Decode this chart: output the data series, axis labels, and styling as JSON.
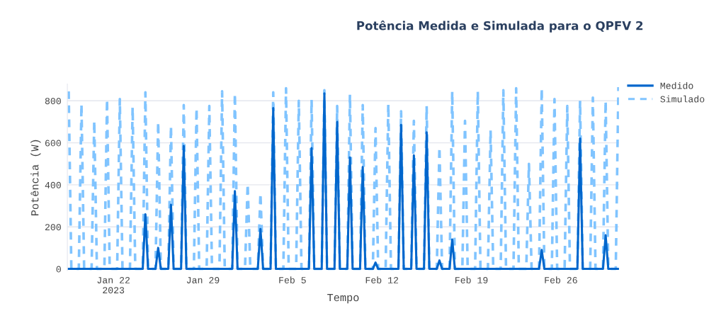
{
  "chart_data": {
    "type": "line",
    "title": "Potência Medida e Simulada para o QPFV 2",
    "xlabel": "Tempo",
    "ylabel": "Potência (W)",
    "xlim": [
      "2023-01-18T09:30",
      "2023-03-02T13:00"
    ],
    "ylim": [
      -8,
      880
    ],
    "xticks": [
      {
        "value": "2023-01-22",
        "label": "Jan 22\n2023"
      },
      {
        "value": "2023-01-29",
        "label": "Jan 29"
      },
      {
        "value": "2023-02-05",
        "label": "Feb 5"
      },
      {
        "value": "2023-02-12",
        "label": "Feb 12"
      },
      {
        "value": "2023-02-19",
        "label": "Feb 19"
      },
      {
        "value": "2023-02-26",
        "label": "Feb 26"
      }
    ],
    "yticks": [
      0,
      200,
      400,
      600,
      800
    ],
    "grid": "y",
    "legend": "right",
    "x": [
      "2023-01-18T12:00",
      "2023-01-18T17:00",
      "2023-01-19T07:00",
      "2023-01-19T12:00",
      "2023-01-19T17:00",
      "2023-01-20T07:00",
      "2023-01-20T12:00",
      "2023-01-20T17:00",
      "2023-01-21T07:00",
      "2023-01-21T12:00",
      "2023-01-21T17:00",
      "2023-01-22T07:00",
      "2023-01-22T12:00",
      "2023-01-22T17:00",
      "2023-01-23T07:00",
      "2023-01-23T12:00",
      "2023-01-23T17:00",
      "2023-01-24T07:00",
      "2023-01-24T12:00",
      "2023-01-24T17:00",
      "2023-01-25T07:00",
      "2023-01-25T12:00",
      "2023-01-25T17:00",
      "2023-01-26T07:00",
      "2023-01-26T12:00",
      "2023-01-26T17:00",
      "2023-01-27T07:00",
      "2023-01-27T12:00",
      "2023-01-27T17:00",
      "2023-01-28T07:00",
      "2023-01-28T12:00",
      "2023-01-28T17:00",
      "2023-01-29T07:00",
      "2023-01-29T12:00",
      "2023-01-29T17:00",
      "2023-01-30T07:00",
      "2023-01-30T12:00",
      "2023-01-30T17:00",
      "2023-01-31T07:00",
      "2023-01-31T12:00",
      "2023-01-31T17:00",
      "2023-02-01T07:00",
      "2023-02-01T12:00",
      "2023-02-01T17:00",
      "2023-02-02T07:00",
      "2023-02-02T12:00",
      "2023-02-02T17:00",
      "2023-02-03T07:00",
      "2023-02-03T12:00",
      "2023-02-03T17:00",
      "2023-02-04T07:00",
      "2023-02-04T12:00",
      "2023-02-04T17:00",
      "2023-02-05T07:00",
      "2023-02-05T12:00",
      "2023-02-05T17:00",
      "2023-02-06T07:00",
      "2023-02-06T12:00",
      "2023-02-06T17:00",
      "2023-02-07T07:00",
      "2023-02-07T12:00",
      "2023-02-07T17:00",
      "2023-02-08T07:00",
      "2023-02-08T12:00",
      "2023-02-08T17:00",
      "2023-02-09T07:00",
      "2023-02-09T12:00",
      "2023-02-09T17:00",
      "2023-02-10T07:00",
      "2023-02-10T12:00",
      "2023-02-10T17:00",
      "2023-02-11T07:00",
      "2023-02-11T12:00",
      "2023-02-11T17:00",
      "2023-02-12T07:00",
      "2023-02-12T12:00",
      "2023-02-12T17:00",
      "2023-02-13T07:00",
      "2023-02-13T12:00",
      "2023-02-13T17:00",
      "2023-02-14T07:00",
      "2023-02-14T12:00",
      "2023-02-14T17:00",
      "2023-02-15T07:00",
      "2023-02-15T12:00",
      "2023-02-15T17:00",
      "2023-02-16T07:00",
      "2023-02-16T12:00",
      "2023-02-16T17:00",
      "2023-02-17T07:00",
      "2023-02-17T12:00",
      "2023-02-17T17:00",
      "2023-02-18T07:00",
      "2023-02-18T12:00",
      "2023-02-18T17:00",
      "2023-02-19T07:00",
      "2023-02-19T12:00",
      "2023-02-19T17:00",
      "2023-02-20T07:00",
      "2023-02-20T12:00",
      "2023-02-20T17:00",
      "2023-02-21T07:00",
      "2023-02-21T12:00",
      "2023-02-21T17:00",
      "2023-02-22T07:00",
      "2023-02-22T12:00",
      "2023-02-22T17:00",
      "2023-02-23T07:00",
      "2023-02-23T12:00",
      "2023-02-23T17:00",
      "2023-02-24T07:00",
      "2023-02-24T12:00",
      "2023-02-24T17:00",
      "2023-02-25T07:00",
      "2023-02-25T12:00",
      "2023-02-25T17:00",
      "2023-02-26T07:00",
      "2023-02-26T12:00",
      "2023-02-26T17:00",
      "2023-02-27T07:00",
      "2023-02-27T12:00",
      "2023-02-27T17:00",
      "2023-02-28T07:00",
      "2023-02-28T12:00",
      "2023-02-28T17:00",
      "2023-03-01T07:00",
      "2023-03-01T12:00",
      "2023-03-01T17:00",
      "2023-03-02T07:00",
      "2023-03-02T12:00"
    ],
    "series": [
      {
        "name": "Medido",
        "color": "#0066cc",
        "line_style": "solid",
        "values": [
          0,
          0,
          0,
          0,
          0,
          0,
          0,
          0,
          0,
          0,
          0,
          0,
          0,
          0,
          0,
          0,
          0,
          0,
          260,
          0,
          0,
          100,
          0,
          0,
          305,
          0,
          0,
          585,
          0,
          0,
          0,
          0,
          0,
          0,
          0,
          0,
          0,
          0,
          0,
          370,
          0,
          0,
          0,
          0,
          0,
          190,
          0,
          0,
          765,
          0,
          0,
          0,
          0,
          0,
          0,
          0,
          0,
          575,
          0,
          0,
          835,
          0,
          0,
          700,
          0,
          0,
          530,
          0,
          0,
          485,
          0,
          0,
          30,
          0,
          0,
          0,
          0,
          0,
          685,
          0,
          0,
          540,
          0,
          0,
          650,
          0,
          0,
          40,
          0,
          0,
          140,
          0,
          0,
          0,
          0,
          0,
          0,
          0,
          0,
          0,
          0,
          0,
          0,
          0,
          0,
          0,
          0,
          0,
          0,
          0,
          0,
          90,
          0,
          0,
          0,
          0,
          0,
          0,
          0,
          0,
          620,
          0,
          0,
          0,
          0,
          0,
          160,
          0,
          0,
          0
        ]
      },
      {
        "name": "Simulado",
        "color": "#80c4ff",
        "line_style": "dashed",
        "values": [
          845,
          0,
          0,
          785,
          0,
          0,
          705,
          0,
          0,
          808,
          0,
          0,
          808,
          0,
          0,
          770,
          0,
          0,
          840,
          0,
          0,
          700,
          0,
          0,
          680,
          0,
          0,
          780,
          0,
          0,
          765,
          0,
          0,
          775,
          0,
          0,
          845,
          0,
          0,
          835,
          0,
          0,
          405,
          0,
          0,
          360,
          0,
          0,
          840,
          0,
          0,
          860,
          0,
          0,
          800,
          0,
          0,
          805,
          0,
          0,
          850,
          0,
          0,
          775,
          0,
          0,
          830,
          0,
          0,
          780,
          0,
          0,
          670,
          0,
          0,
          785,
          0,
          0,
          750,
          0,
          0,
          705,
          0,
          0,
          775,
          0,
          0,
          580,
          0,
          0,
          845,
          0,
          0,
          705,
          0,
          0,
          845,
          0,
          0,
          660,
          0,
          0,
          850,
          0,
          0,
          860,
          0,
          0,
          500,
          0,
          0,
          860,
          0,
          0,
          808,
          0,
          0,
          775,
          0,
          0,
          800,
          0,
          0,
          815,
          0,
          0,
          800,
          0,
          0,
          865
        ]
      }
    ]
  }
}
